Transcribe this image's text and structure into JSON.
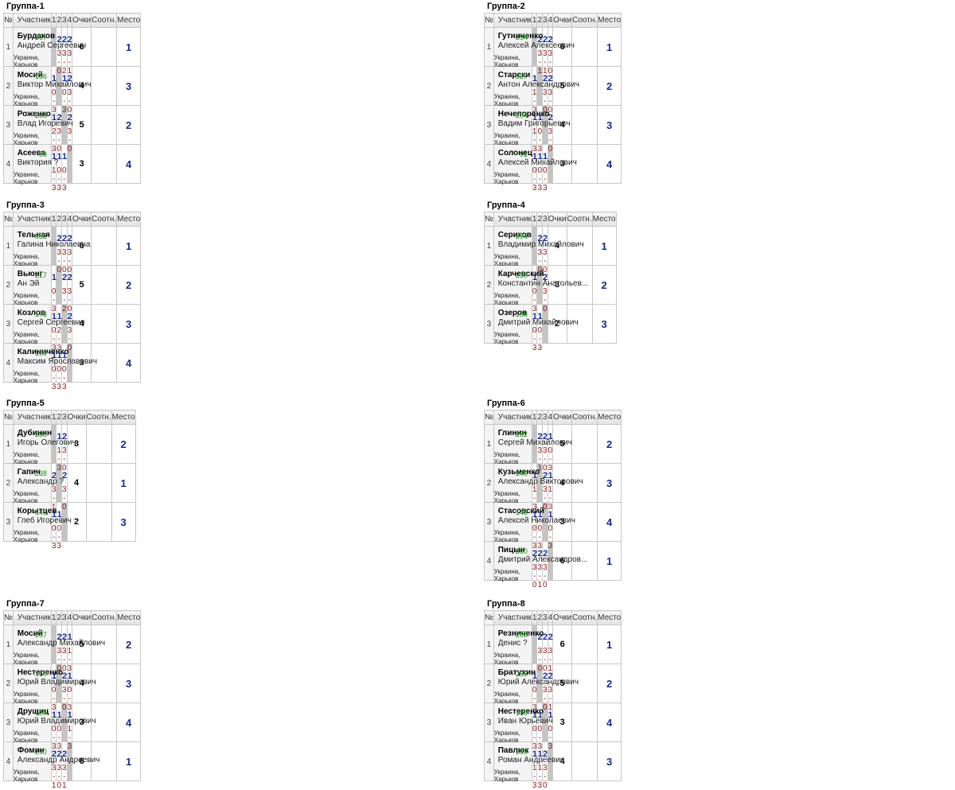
{
  "headers": {
    "num": "№",
    "participant": "Участник",
    "points": "Очки",
    "ratio": "Соотн.",
    "place": "Место"
  },
  "groups": [
    {
      "title": "Группа-1",
      "cols": [
        "1",
        "2",
        "3",
        "4"
      ],
      "players": [
        {
          "num": "1",
          "surname": "Бурдаков",
          "firstname": "Андрей Сергеевич",
          "rating": "467",
          "location": "Украина, Харьков",
          "points": "6",
          "place": "1",
          "results": [
            null,
            {
              "w": "2",
              "s": "3 - 0"
            },
            {
              "w": "2",
              "s": "3 - 2"
            },
            {
              "w": "2",
              "s": "3 - 1"
            }
          ]
        },
        {
          "num": "2",
          "surname": "Мосий",
          "firstname": "Виктор Михайлович",
          "rating": "166",
          "location": "Украина, Харьков",
          "points": "4",
          "place": "3",
          "results": [
            {
              "w": "1",
              "s": "0 - 3"
            },
            null,
            {
              "w": "1",
              "s": "0 - 3"
            },
            {
              "w": "2",
              "s": "3 - 0"
            }
          ]
        },
        {
          "num": "3",
          "surname": "Роженко",
          "firstname": "Влад Игоревич",
          "rating": "203",
          "location": "Украина, Харьков",
          "points": "5",
          "place": "2",
          "results": [
            {
              "w": "1",
              "s": "2 - 3"
            },
            {
              "w": "2",
              "s": "3 - 0"
            },
            null,
            {
              "w": "2",
              "s": "3 - 0"
            }
          ]
        },
        {
          "num": "4",
          "surname": "Асеева",
          "firstname": "Виктория ?",
          "rating": "99",
          "location": "Украина, Харьков",
          "points": "3",
          "place": "4",
          "results": [
            {
              "w": "1",
              "s": "1 - 3"
            },
            {
              "w": "1",
              "s": "0 - 3"
            },
            {
              "w": "1",
              "s": "0 - 3"
            },
            null
          ]
        }
      ]
    },
    {
      "title": "Группа-2",
      "cols": [
        "1",
        "2",
        "3",
        "4"
      ],
      "players": [
        {
          "num": "1",
          "surname": "Гутниченко",
          "firstname": "Алексей Алексеевич",
          "rating": "394",
          "location": "Украина, Харьков",
          "points": "6",
          "place": "1",
          "results": [
            null,
            {
              "w": "2",
              "s": "3 - 1"
            },
            {
              "w": "2",
              "s": "3 - 1"
            },
            {
              "w": "2",
              "s": "3 - 0"
            }
          ]
        },
        {
          "num": "2",
          "surname": "Старски",
          "firstname": "Антон Александрович",
          "rating": "227",
          "location": "Украина, Харьков",
          "points": "5",
          "place": "2",
          "results": [
            {
              "w": "1",
              "s": "1 - 3"
            },
            null,
            {
              "w": "2",
              "s": "3 - 0"
            },
            {
              "w": "2",
              "s": "3 - 0"
            }
          ]
        },
        {
          "num": "3",
          "surname": "Нечепоренко",
          "firstname": "Вадим Григорьевич",
          "rating": "204",
          "location": "Украина, Харьков",
          "points": "4",
          "place": "3",
          "results": [
            {
              "w": "1",
              "s": "1 - 3"
            },
            {
              "w": "1",
              "s": "0 - 3"
            },
            null,
            {
              "w": "2",
              "s": "3 - 0"
            }
          ]
        },
        {
          "num": "4",
          "surname": "Солонец",
          "firstname": "Алексей Михайлович",
          "rating": "91",
          "location": "Украина, Харьков",
          "points": "3",
          "place": "4",
          "results": [
            {
              "w": "1",
              "s": "0 - 3"
            },
            {
              "w": "1",
              "s": "0 - 3"
            },
            {
              "w": "1",
              "s": "0 - 3"
            },
            null
          ]
        }
      ]
    },
    {
      "title": "Группа-3",
      "cols": [
        "1",
        "2",
        "3",
        "4"
      ],
      "players": [
        {
          "num": "1",
          "surname": "Тельная",
          "firstname": "Галина Николаевна",
          "rating": "352",
          "location": "Украина, Харьков",
          "points": "6",
          "place": "1",
          "results": [
            null,
            {
              "w": "2",
              "s": "3 - 0"
            },
            {
              "w": "2",
              "s": "3 - 0"
            },
            {
              "w": "2",
              "s": "3 - 0"
            }
          ]
        },
        {
          "num": "2",
          "surname": "Вьюнг",
          "firstname": "Ан Эй",
          "rating": "217",
          "location": "Украина, Харьков",
          "points": "5",
          "place": "2",
          "results": [
            {
              "w": "1",
              "s": "0 - 3"
            },
            null,
            {
              "w": "2",
              "s": "3 - 2"
            },
            {
              "w": "2",
              "s": "3 - 0"
            }
          ]
        },
        {
          "num": "3",
          "surname": "Козлов",
          "firstname": "Сергей Сергеевич",
          "rating": "173",
          "location": "Украина, Харьков",
          "points": "4",
          "place": "3",
          "results": [
            {
              "w": "1",
              "s": "0 - 3"
            },
            {
              "w": "1",
              "s": "2 - 3"
            },
            null,
            {
              "w": "2",
              "s": "3 - 0"
            }
          ]
        },
        {
          "num": "4",
          "surname": "Калиниченко",
          "firstname": "Максим Ярославович",
          "rating": "100",
          "location": "Украина, Харьков",
          "points": "3",
          "place": "4",
          "results": [
            {
              "w": "1",
              "s": "0 - 3"
            },
            {
              "w": "1",
              "s": "0 - 3"
            },
            {
              "w": "1",
              "s": "0 - 3"
            },
            null
          ]
        }
      ]
    },
    {
      "title": "Группа-4",
      "cols": [
        "1",
        "2",
        "3"
      ],
      "players": [
        {
          "num": "1",
          "surname": "Сериков",
          "firstname": "Владимир Михайлович",
          "rating": "294",
          "location": "Украина, Харьков",
          "points": "4",
          "place": "1",
          "results": [
            null,
            {
              "w": "2",
              "s": "3 - 0"
            },
            {
              "w": "2",
              "s": "3 - 0"
            }
          ]
        },
        {
          "num": "2",
          "surname": "Карчевский",
          "firstname": "Константин Анатольев...",
          "rating": "230",
          "location": "Украина, Харьков",
          "points": "3",
          "place": "2",
          "results": [
            {
              "w": "1",
              "s": "0 - 3"
            },
            null,
            {
              "w": "2",
              "s": "3 - 0"
            }
          ]
        },
        {
          "num": "3",
          "surname": "Озеров",
          "firstname": "Дмитрий Михайлович",
          "rating": "168",
          "location": "Украина, Харьков",
          "points": "2",
          "place": "3",
          "results": [
            {
              "w": "1",
              "s": "0 - 3"
            },
            {
              "w": "1",
              "s": "0 - 3"
            },
            null
          ]
        }
      ]
    },
    {
      "title": "Группа-5",
      "cols": [
        "1",
        "2",
        "3"
      ],
      "players": [
        {
          "num": "1",
          "surname": "Дубинин",
          "firstname": "Игорь Олегович",
          "rating": "286",
          "location": "Украина, Харьков",
          "points": "3",
          "place": "2",
          "results": [
            null,
            {
              "w": "1",
              "s": "1 - 3"
            },
            {
              "w": "2",
              "s": "3 - 0"
            }
          ]
        },
        {
          "num": "2",
          "surname": "Гапич",
          "firstname": "Александр ?",
          "rating": "238",
          "location": "Украина, Харьков",
          "points": "4",
          "place": "1",
          "results": [
            {
              "w": "2",
              "s": "3 - 1"
            },
            null,
            {
              "w": "2",
              "s": "3 - 0"
            }
          ]
        },
        {
          "num": "3",
          "surname": "Корытцев",
          "firstname": "Глеб Игоревич",
          "rating": "145",
          "location": "Украина, Харьков",
          "points": "2",
          "place": "3",
          "results": [
            {
              "w": "1",
              "s": "0 - 3"
            },
            {
              "w": "1",
              "s": "0 - 3"
            },
            null
          ]
        }
      ]
    },
    {
      "title": "Группа-6",
      "cols": [
        "1",
        "2",
        "3",
        "4"
      ],
      "players": [
        {
          "num": "1",
          "surname": "Глинин",
          "firstname": "Сергей Михайлович",
          "rating": "262",
          "location": "Украина, Харьков",
          "points": "5",
          "place": "2",
          "results": [
            null,
            {
              "w": "2",
              "s": "3 - 1"
            },
            {
              "w": "2",
              "s": "3 - 0"
            },
            {
              "w": "1",
              "s": "0 - 3"
            }
          ]
        },
        {
          "num": "2",
          "surname": "Кузьменко",
          "firstname": "Александр Викторович",
          "rating": "240",
          "location": "Украина, Харьков",
          "points": "4",
          "place": "3",
          "results": [
            {
              "w": "1",
              "s": "1 - 3"
            },
            null,
            {
              "w": "2",
              "s": "3 - 0"
            },
            {
              "w": "1",
              "s": "1 - 3"
            }
          ]
        },
        {
          "num": "3",
          "surname": "Стасовский",
          "firstname": "Алексей Николаевич",
          "rating": "143",
          "location": "Украина, Харьков",
          "points": "3",
          "place": "4",
          "results": [
            {
              "w": "1",
              "s": "0 - 3"
            },
            {
              "w": "1",
              "s": "0 - 3"
            },
            null,
            {
              "w": "1",
              "s": "0 - 3"
            }
          ]
        },
        {
          "num": "4",
          "surname": "Пицын",
          "firstname": "Дмитрий Александров...",
          "rating": "300",
          "location": "Украина, Харьков",
          "points": "6",
          "place": "1",
          "results": [
            {
              "w": "2",
              "s": "3 - 0"
            },
            {
              "w": "2",
              "s": "3 - 1"
            },
            {
              "w": "2",
              "s": "3 - 0"
            },
            null
          ]
        }
      ]
    },
    {
      "title": "Группа-7",
      "cols": [
        "1",
        "2",
        "3",
        "4"
      ],
      "players": [
        {
          "num": "1",
          "surname": "Мосий",
          "firstname": "Александр Михайлович",
          "rating": "267",
          "location": "Украина, Харьков",
          "points": "5",
          "place": "2",
          "results": [
            null,
            {
              "w": "2",
              "s": "3 - 0"
            },
            {
              "w": "2",
              "s": "3 - 0"
            },
            {
              "w": "1",
              "s": "1 - 3"
            }
          ]
        },
        {
          "num": "2",
          "surname": "Нестеренко",
          "firstname": "Юрий Владимирович",
          "rating": "150",
          "location": "Украина, Харьков",
          "points": "4",
          "place": "3",
          "results": [
            {
              "w": "1",
              "s": "0 - 3"
            },
            null,
            {
              "w": "2",
              "s": "3 - 0"
            },
            {
              "w": "1",
              "s": "0 - 3"
            }
          ]
        },
        {
          "num": "3",
          "surname": "Друщиц",
          "firstname": "Юрий Владимирович",
          "rating": "103",
          "location": "Украина, Харьков",
          "points": "3",
          "place": "4",
          "results": [
            {
              "w": "1",
              "s": "0 - 3"
            },
            {
              "w": "1",
              "s": "0 - 3"
            },
            null,
            {
              "w": "1",
              "s": "1 - 3"
            }
          ]
        },
        {
          "num": "4",
          "surname": "Фомин",
          "firstname": "Александр Андреевич",
          "rating": "290",
          "location": "Украина, Харьков",
          "points": "6",
          "place": "1",
          "results": [
            {
              "w": "2",
              "s": "3 - 1"
            },
            {
              "w": "2",
              "s": "3 - 0"
            },
            {
              "w": "2",
              "s": "3 - 1"
            },
            null
          ]
        }
      ]
    },
    {
      "title": "Группа-8",
      "cols": [
        "1",
        "2",
        "3",
        "4"
      ],
      "players": [
        {
          "num": "1",
          "surname": "Резниченко",
          "firstname": "Денис ?",
          "rating": "268",
          "location": "Украина, Харьков",
          "points": "6",
          "place": "1",
          "results": [
            null,
            {
              "w": "2",
              "s": "3 - 0"
            },
            {
              "w": "2",
              "s": "3 - 0"
            },
            {
              "w": "2",
              "s": "3 - 1"
            }
          ]
        },
        {
          "num": "2",
          "surname": "Братухин",
          "firstname": "Юрий Александрович",
          "rating": "263",
          "location": "Украина, Харьков",
          "points": "5",
          "place": "2",
          "results": [
            {
              "w": "1",
              "s": "0 - 3"
            },
            null,
            {
              "w": "2",
              "s": "3 - 0"
            },
            {
              "w": "2",
              "s": "3 - 1"
            }
          ]
        },
        {
          "num": "3",
          "surname": "Нестеренко",
          "firstname": "Иван Юрьевич",
          "rating": "100",
          "location": "Украина, Харьков",
          "points": "3",
          "place": "4",
          "results": [
            {
              "w": "1",
              "s": "0 - 3"
            },
            {
              "w": "1",
              "s": "0 - 3"
            },
            null,
            {
              "w": "1",
              "s": "0 - 3"
            }
          ]
        },
        {
          "num": "4",
          "surname": "Павлюк",
          "firstname": "Роман Андреевич",
          "rating": "200",
          "location": "Украина, Харьков",
          "points": "4",
          "place": "3",
          "results": [
            {
              "w": "1",
              "s": "1 - 3"
            },
            {
              "w": "1",
              "s": "1 - 3"
            },
            {
              "w": "2",
              "s": "3 - 0"
            },
            null
          ]
        }
      ]
    }
  ]
}
